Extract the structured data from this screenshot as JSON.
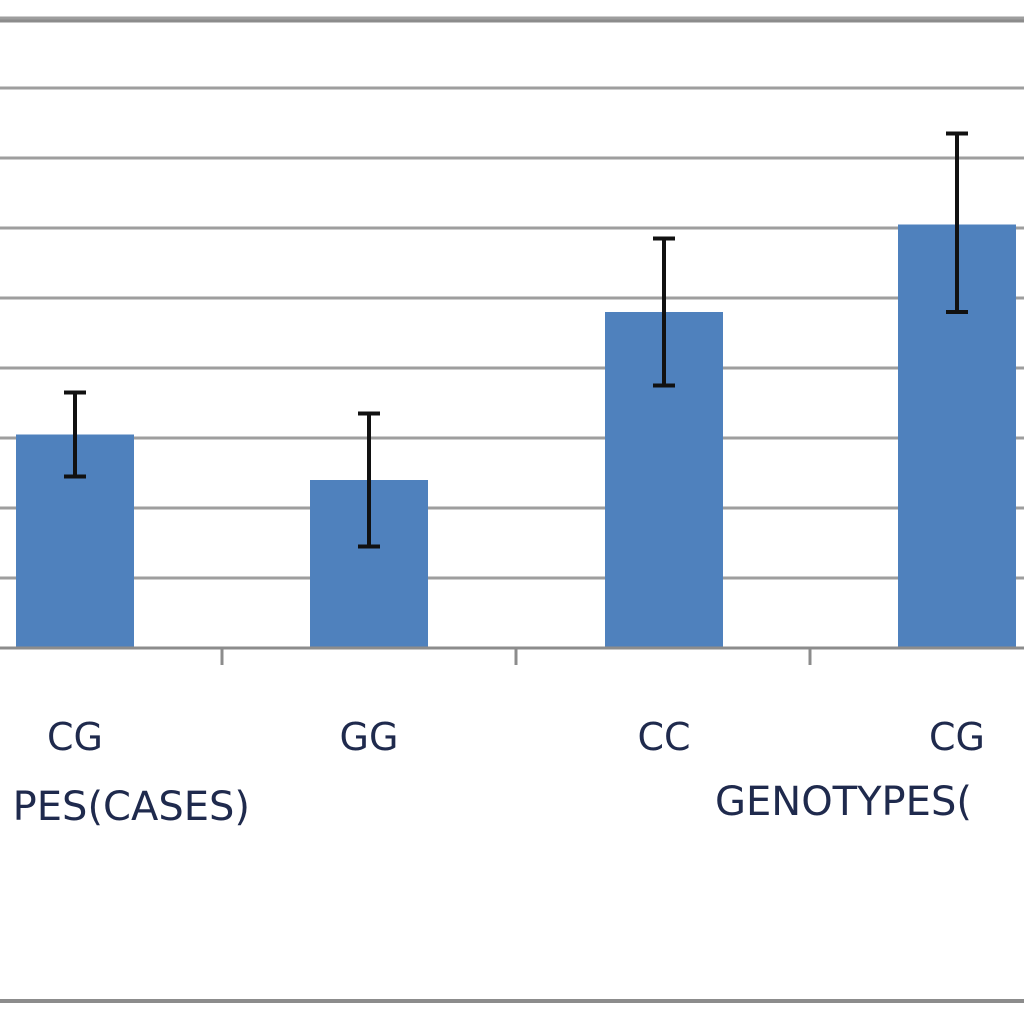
{
  "chart_data": {
    "type": "bar",
    "categories": [
      "CG",
      "GG",
      "CC",
      "CG"
    ],
    "values": [
      3.05,
      2.4,
      4.8,
      6.05
    ],
    "error_bars": [
      {
        "low": 2.45,
        "high": 3.65
      },
      {
        "low": 1.45,
        "high": 3.35
      },
      {
        "low": 3.75,
        "high": 5.85
      },
      {
        "low": 4.8,
        "high": 7.35
      }
    ],
    "group_labels": [
      "PES(CASES)",
      "GENOTYPES("
    ],
    "ylim": [
      0,
      9
    ],
    "grid": true,
    "bar_color": "#4f81bd",
    "grid_color": "#9e9e9e"
  }
}
